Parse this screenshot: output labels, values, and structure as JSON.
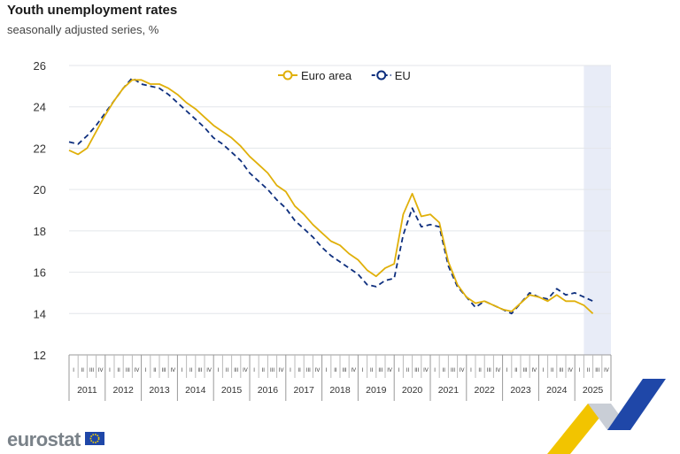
{
  "title": "Youth unemployment rates",
  "subtitle": "seasonally adjusted series, %",
  "logo_text": "eurostat",
  "colors": {
    "euro_area": "#e0b00a",
    "eu": "#0e2f7e",
    "grid": "#e3e6ea",
    "shade": "#e8ecf7",
    "axis_text": "#333333"
  },
  "chart_data": {
    "type": "line",
    "y_ticks": [
      12,
      14,
      16,
      18,
      20,
      22,
      24,
      26
    ],
    "ylim": [
      12,
      26
    ],
    "years": [
      "2011",
      "2012",
      "2013",
      "2014",
      "2015",
      "2016",
      "2017",
      "2018",
      "2019",
      "2020",
      "2021",
      "2022",
      "2023",
      "2024",
      "2025"
    ],
    "quarter_labels": [
      "I",
      "II",
      "III",
      "IV"
    ],
    "legend_position": "top",
    "series": [
      {
        "name": "Euro area",
        "line_style": "solid",
        "x": [
          "2011-01",
          "2011-04",
          "2011-07",
          "2011-10",
          "2012-01",
          "2012-04",
          "2012-07",
          "2012-10",
          "2013-01",
          "2013-04",
          "2013-07",
          "2013-10",
          "2014-01",
          "2014-04",
          "2014-07",
          "2014-10",
          "2015-01",
          "2015-04",
          "2015-07",
          "2015-10",
          "2016-01",
          "2016-04",
          "2016-07",
          "2016-10",
          "2017-01",
          "2017-04",
          "2017-07",
          "2017-10",
          "2018-01",
          "2018-04",
          "2018-07",
          "2018-10",
          "2019-01",
          "2019-04",
          "2019-07",
          "2019-10",
          "2020-01",
          "2020-04",
          "2020-07",
          "2020-10",
          "2021-01",
          "2021-04",
          "2021-07",
          "2021-10",
          "2022-01",
          "2022-04",
          "2022-07",
          "2022-10",
          "2023-01",
          "2023-04",
          "2023-07",
          "2023-10",
          "2024-01",
          "2024-04",
          "2024-07",
          "2024-10",
          "2025-01",
          "2025-04",
          "2025-07"
        ],
        "values": [
          21.9,
          21.7,
          22.0,
          22.8,
          23.6,
          24.3,
          24.9,
          25.3,
          25.3,
          25.1,
          25.1,
          24.9,
          24.6,
          24.2,
          23.9,
          23.5,
          23.1,
          22.8,
          22.5,
          22.1,
          21.6,
          21.2,
          20.8,
          20.2,
          19.9,
          19.2,
          18.8,
          18.3,
          17.9,
          17.5,
          17.3,
          16.9,
          16.6,
          16.1,
          15.8,
          16.2,
          16.4,
          18.8,
          19.8,
          18.7,
          18.8,
          18.4,
          16.5,
          15.4,
          14.8,
          14.5,
          14.6,
          14.4,
          14.2,
          14.1,
          14.5,
          14.9,
          14.8,
          14.6,
          14.9,
          14.6,
          14.6,
          14.4,
          14.0
        ]
      },
      {
        "name": "EU",
        "line_style": "dashed",
        "x": [
          "2011-01",
          "2011-04",
          "2011-07",
          "2011-10",
          "2012-01",
          "2012-04",
          "2012-07",
          "2012-10",
          "2013-01",
          "2013-04",
          "2013-07",
          "2013-10",
          "2014-01",
          "2014-04",
          "2014-07",
          "2014-10",
          "2015-01",
          "2015-04",
          "2015-07",
          "2015-10",
          "2016-01",
          "2016-04",
          "2016-07",
          "2016-10",
          "2017-01",
          "2017-04",
          "2017-07",
          "2017-10",
          "2018-01",
          "2018-04",
          "2018-07",
          "2018-10",
          "2019-01",
          "2019-04",
          "2019-07",
          "2019-10",
          "2020-01",
          "2020-04",
          "2020-07",
          "2020-10",
          "2021-01",
          "2021-04",
          "2021-07",
          "2021-10",
          "2022-01",
          "2022-04",
          "2022-07",
          "2022-10",
          "2023-01",
          "2023-04",
          "2023-07",
          "2023-10",
          "2024-01",
          "2024-04",
          "2024-07",
          "2024-10",
          "2025-01",
          "2025-04",
          "2025-07"
        ],
        "values": [
          22.3,
          22.2,
          22.6,
          23.1,
          23.7,
          24.3,
          24.9,
          25.4,
          25.1,
          25.0,
          24.9,
          24.6,
          24.2,
          23.8,
          23.4,
          23.0,
          22.5,
          22.2,
          21.8,
          21.4,
          20.8,
          20.4,
          20.0,
          19.5,
          19.1,
          18.5,
          18.1,
          17.7,
          17.2,
          16.8,
          16.5,
          16.2,
          15.9,
          15.4,
          15.3,
          15.6,
          15.7,
          17.8,
          19.1,
          18.2,
          18.3,
          18.2,
          16.3,
          15.3,
          14.8,
          14.3,
          14.6,
          14.4,
          14.2,
          14.0,
          14.5,
          15.0,
          14.8,
          14.7,
          15.2,
          14.9,
          15.0,
          14.8,
          14.6
        ]
      }
    ]
  }
}
